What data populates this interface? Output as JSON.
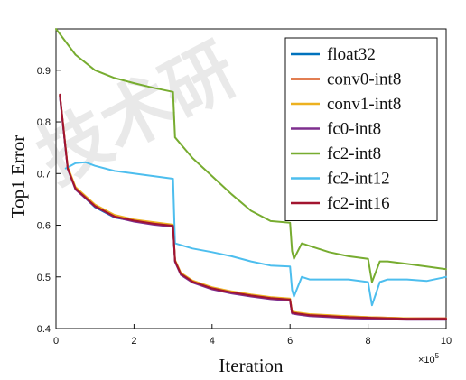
{
  "chart_data": {
    "type": "line",
    "title": "",
    "xlabel": "Iteration",
    "ylabel": "Top1 Error",
    "x_multiplier_label": "×10",
    "x_multiplier_power": "5",
    "xlim": [
      0,
      10
    ],
    "ylim": [
      0.4,
      0.98
    ],
    "x_ticks": [
      0,
      2,
      4,
      6,
      8,
      10
    ],
    "x_tick_labels": [
      "0",
      "2",
      "4",
      "6",
      "8",
      "10"
    ],
    "y_ticks": [
      0.4,
      0.5,
      0.6,
      0.7,
      0.8,
      0.9
    ],
    "y_tick_labels": [
      "0.4",
      "0.5",
      "0.6",
      "0.7",
      "0.8",
      "0.9"
    ],
    "legend_position": "top-right",
    "grid": false,
    "watermark_text": "技术研",
    "series": [
      {
        "name": "float32",
        "color": "#0072bd",
        "x": [
          0.1,
          0.3,
          0.5,
          1.0,
          1.5,
          2.0,
          2.5,
          3.0,
          3.05,
          3.2,
          3.5,
          4.0,
          4.5,
          5.0,
          5.5,
          6.0,
          6.05,
          6.2,
          6.5,
          7.0,
          7.5,
          8.0,
          8.5,
          9.0,
          9.5,
          10.0
        ],
        "values": [
          0.85,
          0.71,
          0.67,
          0.635,
          0.615,
          0.608,
          0.602,
          0.598,
          0.53,
          0.505,
          0.49,
          0.477,
          0.469,
          0.463,
          0.458,
          0.455,
          0.43,
          0.428,
          0.425,
          0.423,
          0.421,
          0.42,
          0.419,
          0.418,
          0.418,
          0.418
        ]
      },
      {
        "name": "conv0-int8",
        "color": "#d95319",
        "x": [
          0.1,
          0.3,
          0.5,
          1.0,
          1.5,
          2.0,
          2.5,
          3.0,
          3.05,
          3.2,
          3.5,
          4.0,
          4.5,
          5.0,
          5.5,
          6.0,
          6.05,
          6.2,
          6.5,
          7.0,
          7.5,
          8.0,
          8.5,
          9.0,
          9.5,
          10.0
        ],
        "values": [
          0.852,
          0.712,
          0.672,
          0.638,
          0.618,
          0.61,
          0.604,
          0.6,
          0.532,
          0.507,
          0.492,
          0.479,
          0.471,
          0.465,
          0.46,
          0.457,
          0.432,
          0.43,
          0.427,
          0.425,
          0.423,
          0.422,
          0.421,
          0.42,
          0.42,
          0.42
        ]
      },
      {
        "name": "conv1-int8",
        "color": "#edb120",
        "x": [
          0.1,
          0.3,
          0.5,
          1.0,
          1.5,
          2.0,
          2.5,
          3.0,
          3.05,
          3.2,
          3.5,
          4.0,
          4.5,
          5.0,
          5.5,
          6.0,
          6.05,
          6.2,
          6.5,
          7.0,
          7.5,
          8.0,
          8.5,
          9.0,
          9.5,
          10.0
        ],
        "values": [
          0.851,
          0.713,
          0.674,
          0.64,
          0.62,
          0.611,
          0.606,
          0.601,
          0.533,
          0.508,
          0.493,
          0.48,
          0.472,
          0.466,
          0.461,
          0.458,
          0.433,
          0.431,
          0.428,
          0.426,
          0.424,
          0.422,
          0.421,
          0.42,
          0.419,
          0.419
        ]
      },
      {
        "name": "fc0-int8",
        "color": "#7e2f8e",
        "x": [
          0.1,
          0.3,
          0.5,
          1.0,
          1.5,
          2.0,
          2.5,
          3.0,
          3.05,
          3.2,
          3.5,
          4.0,
          4.5,
          5.0,
          5.5,
          6.0,
          6.05,
          6.2,
          6.5,
          7.0,
          7.5,
          8.0,
          8.5,
          9.0,
          9.5,
          10.0
        ],
        "values": [
          0.849,
          0.709,
          0.669,
          0.636,
          0.616,
          0.607,
          0.601,
          0.597,
          0.529,
          0.504,
          0.489,
          0.476,
          0.468,
          0.462,
          0.457,
          0.454,
          0.429,
          0.427,
          0.424,
          0.422,
          0.42,
          0.419,
          0.418,
          0.417,
          0.417,
          0.417
        ]
      },
      {
        "name": "fc2-int8",
        "color": "#77ac30",
        "x": [
          0.0,
          0.2,
          0.5,
          1.0,
          1.5,
          2.0,
          2.5,
          3.0,
          3.05,
          3.5,
          4.0,
          4.5,
          5.0,
          5.5,
          6.0,
          6.05,
          6.1,
          6.3,
          6.5,
          7.0,
          7.5,
          8.0,
          8.1,
          8.3,
          8.5,
          9.0,
          9.5,
          10.0
        ],
        "values": [
          0.98,
          0.96,
          0.93,
          0.9,
          0.885,
          0.875,
          0.866,
          0.858,
          0.77,
          0.73,
          0.695,
          0.66,
          0.628,
          0.608,
          0.605,
          0.55,
          0.535,
          0.565,
          0.56,
          0.548,
          0.54,
          0.535,
          0.49,
          0.53,
          0.53,
          0.525,
          0.52,
          0.515
        ]
      },
      {
        "name": "fc2-int12",
        "color": "#4dbeee",
        "x": [
          0.25,
          0.5,
          0.75,
          1.0,
          1.5,
          2.0,
          2.5,
          3.0,
          3.05,
          3.5,
          4.0,
          4.5,
          5.0,
          5.5,
          6.0,
          6.05,
          6.1,
          6.3,
          6.5,
          7.0,
          7.5,
          8.0,
          8.1,
          8.3,
          8.5,
          9.0,
          9.5,
          10.0
        ],
        "values": [
          0.71,
          0.72,
          0.722,
          0.715,
          0.705,
          0.7,
          0.695,
          0.69,
          0.565,
          0.555,
          0.548,
          0.54,
          0.53,
          0.522,
          0.52,
          0.475,
          0.462,
          0.5,
          0.495,
          0.495,
          0.495,
          0.49,
          0.445,
          0.49,
          0.495,
          0.495,
          0.492,
          0.5
        ]
      },
      {
        "name": "fc2-int16",
        "color": "#a2142f",
        "x": [
          0.1,
          0.3,
          0.5,
          1.0,
          1.5,
          2.0,
          2.5,
          3.0,
          3.05,
          3.2,
          3.5,
          4.0,
          4.5,
          5.0,
          5.5,
          6.0,
          6.05,
          6.2,
          6.5,
          7.0,
          7.5,
          8.0,
          8.5,
          9.0,
          9.5,
          10.0
        ],
        "values": [
          0.853,
          0.71,
          0.671,
          0.637,
          0.617,
          0.609,
          0.603,
          0.599,
          0.531,
          0.506,
          0.491,
          0.478,
          0.47,
          0.464,
          0.459,
          0.456,
          0.431,
          0.429,
          0.426,
          0.424,
          0.422,
          0.421,
          0.42,
          0.419,
          0.419,
          0.419
        ]
      }
    ]
  }
}
